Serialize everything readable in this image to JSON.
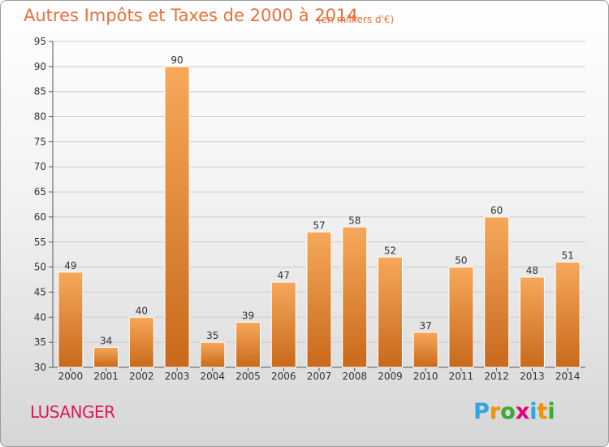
{
  "chart_data": {
    "type": "bar",
    "title": "Autres Impôts et Taxes de 2000 à 2014",
    "subtitle": "(en milliers d'€)",
    "categories": [
      "2000",
      "2001",
      "2002",
      "2003",
      "2004",
      "2005",
      "2006",
      "2007",
      "2008",
      "2009",
      "2010",
      "2011",
      "2012",
      "2013",
      "2014"
    ],
    "values": [
      49,
      34,
      40,
      90,
      35,
      39,
      47,
      57,
      58,
      52,
      37,
      50,
      60,
      48,
      51
    ],
    "data_labels": [
      "49",
      "34",
      "40",
      "90",
      "35",
      "39",
      "47",
      "57",
      "58",
      "52",
      "37",
      "50",
      "60",
      "48",
      "51"
    ],
    "y_ticks": [
      "30",
      "35",
      "40",
      "45",
      "50",
      "55",
      "60",
      "65",
      "70",
      "75",
      "80",
      "85",
      "90",
      "95"
    ],
    "ylim": [
      30,
      95
    ],
    "xlabel": "",
    "ylabel": "",
    "grid": true,
    "legend": "none",
    "colors": {
      "bar_top": "#f7a85a",
      "bar_bottom": "#c8691b",
      "title": "#e8703a",
      "location": "#d81b5f",
      "grid": "#cccccc"
    }
  },
  "location": "LUSANGER",
  "brand": {
    "name": "Proxiti",
    "letters": [
      {
        "ch": "P",
        "color": "#2ea7e0"
      },
      {
        "ch": "r",
        "color": "#f39200"
      },
      {
        "ch": "o",
        "color": "#3aaa35"
      },
      {
        "ch": "x",
        "color": "#e5007d"
      },
      {
        "ch": "i",
        "color": "#2ea7e0"
      },
      {
        "ch": "t",
        "color": "#f39200"
      },
      {
        "ch": "i",
        "color": "#3aaa35"
      }
    ]
  }
}
